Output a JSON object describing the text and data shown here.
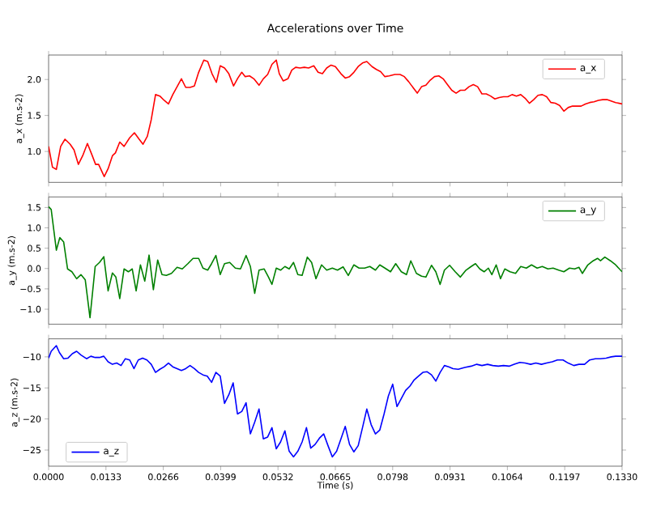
{
  "chart_data": [
    {
      "type": "line",
      "title": "Accelerations over Time",
      "ylabel": "a_x (m.s-2)",
      "legend": "top right",
      "tick_labels": "y",
      "xlim": [
        0,
        0.133
      ],
      "xticks": [
        {
          "value": 0,
          "label": null
        },
        {
          "value": 0.0133,
          "label": null
        },
        {
          "value": 0.0266,
          "label": null
        },
        {
          "value": 0.0399,
          "label": null
        },
        {
          "value": 0.0532,
          "label": null
        },
        {
          "value": 0.0665,
          "label": null
        },
        {
          "value": 0.0798,
          "label": null
        },
        {
          "value": 0.0931,
          "label": null
        },
        {
          "value": 0.1064,
          "label": null
        },
        {
          "value": 0.1197,
          "label": null
        },
        {
          "value": 0.133,
          "label": null
        }
      ],
      "ylim": [
        0.57,
        2.34
      ],
      "yticks": [
        {
          "value": 1,
          "label": "1.0"
        },
        {
          "value": 1.5,
          "label": "1.5"
        },
        {
          "value": 2,
          "label": "2.0"
        }
      ],
      "x": [
        0,
        0.0009,
        0.0018,
        0.0028,
        0.0038,
        0.005,
        0.0059,
        0.0069,
        0.0079,
        0.009,
        0.01,
        0.0109,
        0.0116,
        0.0129,
        0.0138,
        0.0148,
        0.0155,
        0.0165,
        0.0175,
        0.0188,
        0.0199,
        0.021,
        0.0219,
        0.0229,
        0.0238,
        0.0248,
        0.0258,
        0.0268,
        0.0278,
        0.0288,
        0.0298,
        0.0308,
        0.0318,
        0.0328,
        0.0338,
        0.0348,
        0.036,
        0.0369,
        0.0379,
        0.0389,
        0.0398,
        0.0408,
        0.0418,
        0.0429,
        0.0439,
        0.0448,
        0.0456,
        0.0466,
        0.0476,
        0.0488,
        0.0498,
        0.0508,
        0.0518,
        0.0528,
        0.0535,
        0.0544,
        0.0555,
        0.0564,
        0.0573,
        0.0583,
        0.0593,
        0.0603,
        0.0615,
        0.0625,
        0.0635,
        0.0645,
        0.0655,
        0.0665,
        0.0678,
        0.0688,
        0.0698,
        0.0708,
        0.0718,
        0.0728,
        0.0738,
        0.075,
        0.076,
        0.077,
        0.078,
        0.079,
        0.0803,
        0.0815,
        0.0825,
        0.0835,
        0.0845,
        0.0855,
        0.0865,
        0.0875,
        0.0885,
        0.0895,
        0.0905,
        0.0915,
        0.0925,
        0.0935,
        0.0945,
        0.0955,
        0.0965,
        0.0975,
        0.0985,
        0.0995,
        0.1005,
        0.1015,
        0.1025,
        0.1035,
        0.1045,
        0.1055,
        0.1065,
        0.1075,
        0.1085,
        0.1095,
        0.1105,
        0.1115,
        0.1125,
        0.1135,
        0.1145,
        0.1155,
        0.1165,
        0.1175,
        0.1185,
        0.1195,
        0.1205,
        0.1215,
        0.1225,
        0.1235,
        0.1245,
        0.1255,
        0.1265,
        0.1275,
        0.1285,
        0.1295,
        0.1305,
        0.1315,
        0.133
      ],
      "series": [
        {
          "name": "a_x",
          "color": "#ff0000",
          "values": [
            1.07,
            0.78,
            0.75,
            1.07,
            1.17,
            1.1,
            1.02,
            0.82,
            0.94,
            1.11,
            0.96,
            0.82,
            0.82,
            0.65,
            0.76,
            0.94,
            0.98,
            1.13,
            1.07,
            1.19,
            1.26,
            1.17,
            1.1,
            1.21,
            1.44,
            1.79,
            1.77,
            1.71,
            1.66,
            1.79,
            1.9,
            2.01,
            1.89,
            1.89,
            1.91,
            2.1,
            2.27,
            2.25,
            2.08,
            1.96,
            2.19,
            2.16,
            2.08,
            1.91,
            2.02,
            2.1,
            2.04,
            2.05,
            2.01,
            1.92,
            2.01,
            2.07,
            2.21,
            2.27,
            2.08,
            1.98,
            2.01,
            2.13,
            2.17,
            2.16,
            2.17,
            2.16,
            2.19,
            2.1,
            2.08,
            2.16,
            2.2,
            2.18,
            2.08,
            2.02,
            2.04,
            2.1,
            2.18,
            2.23,
            2.25,
            2.18,
            2.14,
            2.11,
            2.04,
            2.05,
            2.07,
            2.07,
            2.04,
            1.97,
            1.89,
            1.81,
            1.9,
            1.92,
            1.99,
            2.04,
            2.05,
            2.01,
            1.93,
            1.85,
            1.81,
            1.85,
            1.85,
            1.9,
            1.93,
            1.9,
            1.8,
            1.8,
            1.77,
            1.73,
            1.75,
            1.76,
            1.76,
            1.79,
            1.77,
            1.79,
            1.74,
            1.67,
            1.72,
            1.78,
            1.79,
            1.76,
            1.68,
            1.67,
            1.64,
            1.56,
            1.61,
            1.63,
            1.63,
            1.63,
            1.66,
            1.68,
            1.69,
            1.71,
            1.72,
            1.72,
            1.7,
            1.68,
            1.66
          ]
        }
      ]
    },
    {
      "type": "line",
      "ylabel": "a_y (m.s-2)",
      "legend": "top right",
      "tick_labels": "y",
      "xlim": [
        0,
        0.133
      ],
      "xticks": [
        {
          "value": 0,
          "label": null
        },
        {
          "value": 0.0133,
          "label": null
        },
        {
          "value": 0.0266,
          "label": null
        },
        {
          "value": 0.0399,
          "label": null
        },
        {
          "value": 0.0532,
          "label": null
        },
        {
          "value": 0.0665,
          "label": null
        },
        {
          "value": 0.0798,
          "label": null
        },
        {
          "value": 0.0931,
          "label": null
        },
        {
          "value": 0.1064,
          "label": null
        },
        {
          "value": 0.1197,
          "label": null
        },
        {
          "value": 0.133,
          "label": null
        }
      ],
      "ylim": [
        -1.37,
        1.76
      ],
      "yticks": [
        {
          "value": -1,
          "label": "−1.0"
        },
        {
          "value": -0.5,
          "label": "−0.5"
        },
        {
          "value": 0,
          "label": "0.0"
        },
        {
          "value": 0.5,
          "label": "0.5"
        },
        {
          "value": 1,
          "label": "1.0"
        },
        {
          "value": 1.5,
          "label": "1.5"
        }
      ],
      "x": [
        0,
        0.0006,
        0.0018,
        0.0026,
        0.0035,
        0.0044,
        0.0054,
        0.0065,
        0.0075,
        0.0085,
        0.0096,
        0.0108,
        0.0118,
        0.0128,
        0.0138,
        0.0148,
        0.0156,
        0.0165,
        0.0175,
        0.0185,
        0.0194,
        0.0203,
        0.0213,
        0.0223,
        0.0233,
        0.0243,
        0.0253,
        0.0263,
        0.0273,
        0.0285,
        0.0298,
        0.031,
        0.0323,
        0.0335,
        0.0348,
        0.0358,
        0.0369,
        0.0378,
        0.0388,
        0.0398,
        0.0408,
        0.042,
        0.0433,
        0.0445,
        0.0458,
        0.0468,
        0.0478,
        0.0488,
        0.05,
        0.051,
        0.0518,
        0.0528,
        0.0538,
        0.0548,
        0.0558,
        0.0568,
        0.0578,
        0.0588,
        0.06,
        0.061,
        0.062,
        0.0633,
        0.0645,
        0.0658,
        0.067,
        0.0683,
        0.0695,
        0.0708,
        0.072,
        0.0733,
        0.0745,
        0.0758,
        0.0768,
        0.078,
        0.0793,
        0.0805,
        0.0818,
        0.083,
        0.084,
        0.0853,
        0.0865,
        0.0875,
        0.0888,
        0.0898,
        0.0908,
        0.0918,
        0.093,
        0.0943,
        0.0955,
        0.0968,
        0.098,
        0.099,
        0.1,
        0.101,
        0.102,
        0.1028,
        0.1038,
        0.1048,
        0.1058,
        0.107,
        0.1083,
        0.1095,
        0.1108,
        0.112,
        0.1133,
        0.1145,
        0.1158,
        0.117,
        0.1183,
        0.1195,
        0.1208,
        0.122,
        0.123,
        0.1238,
        0.125,
        0.1263,
        0.1273,
        0.128,
        0.129,
        0.1303,
        0.1315,
        0.133
      ],
      "series": [
        {
          "name": "a_y",
          "color": "#008000",
          "values": [
            1.52,
            1.45,
            0.45,
            0.76,
            0.65,
            -0.01,
            -0.08,
            -0.25,
            -0.15,
            -0.28,
            -1.21,
            0.05,
            0.15,
            0.29,
            -0.55,
            -0.11,
            -0.21,
            -0.74,
            -0.01,
            -0.08,
            -0.01,
            -0.55,
            0.09,
            -0.31,
            0.33,
            -0.52,
            0.21,
            -0.15,
            -0.17,
            -0.12,
            0.03,
            -0.01,
            0.12,
            0.25,
            0.25,
            0.01,
            -0.04,
            0.12,
            0.32,
            -0.15,
            0.12,
            0.15,
            0.01,
            -0.01,
            0.32,
            0.05,
            -0.61,
            -0.04,
            -0.01,
            -0.21,
            -0.39,
            0.01,
            -0.04,
            0.05,
            -0.01,
            0.15,
            -0.15,
            -0.17,
            0.28,
            0.15,
            -0.25,
            0.09,
            -0.04,
            0.01,
            -0.04,
            0.04,
            -0.17,
            0.09,
            0.01,
            0.01,
            0.05,
            -0.04,
            0.09,
            0.01,
            -0.08,
            0.12,
            -0.08,
            -0.15,
            0.19,
            -0.12,
            -0.19,
            -0.21,
            0.08,
            -0.08,
            -0.39,
            -0.04,
            0.08,
            -0.08,
            -0.21,
            -0.04,
            0.05,
            0.12,
            -0.01,
            -0.08,
            0.01,
            -0.15,
            0.09,
            -0.25,
            -0.01,
            -0.08,
            -0.12,
            0.05,
            0.01,
            0.09,
            0.01,
            0.05,
            -0.01,
            0.01,
            -0.04,
            -0.08,
            0.01,
            -0.01,
            0.03,
            -0.12,
            0.08,
            0.19,
            0.25,
            0.19,
            0.28,
            0.19,
            0.09,
            -0.08
          ]
        }
      ]
    },
    {
      "type": "line",
      "xlabel": "Time (s)",
      "ylabel": "a_z (m.s-2)",
      "legend": "bottom left",
      "xlim": [
        0,
        0.133
      ],
      "xticks": [
        {
          "value": 0,
          "label": "0.0000"
        },
        {
          "value": 0.0133,
          "label": "0.0133"
        },
        {
          "value": 0.0266,
          "label": "0.0266"
        },
        {
          "value": 0.0399,
          "label": "0.0399"
        },
        {
          "value": 0.0532,
          "label": "0.0532"
        },
        {
          "value": 0.0665,
          "label": "0.0665"
        },
        {
          "value": 0.0798,
          "label": "0.0798"
        },
        {
          "value": 0.0931,
          "label": "0.0931"
        },
        {
          "value": 0.1064,
          "label": "0.1064"
        },
        {
          "value": 0.1197,
          "label": "0.1197"
        },
        {
          "value": 0.133,
          "label": "0.1330"
        }
      ],
      "ylim": [
        -27.6,
        -7.1
      ],
      "yticks": [
        {
          "value": -25,
          "label": "−25"
        },
        {
          "value": -20,
          "label": "−20"
        },
        {
          "value": -15,
          "label": "−15"
        },
        {
          "value": -10,
          "label": "−10"
        }
      ],
      "x": [
        0,
        0.0006,
        0.0018,
        0.0025,
        0.0035,
        0.0045,
        0.0055,
        0.0065,
        0.0075,
        0.0088,
        0.0098,
        0.0108,
        0.0118,
        0.0128,
        0.0138,
        0.0148,
        0.0158,
        0.0168,
        0.0178,
        0.0188,
        0.0198,
        0.0208,
        0.0218,
        0.0228,
        0.0238,
        0.0248,
        0.0258,
        0.0268,
        0.0278,
        0.0288,
        0.0298,
        0.0308,
        0.0318,
        0.0328,
        0.0338,
        0.0348,
        0.0358,
        0.0368,
        0.0378,
        0.0388,
        0.0398,
        0.0408,
        0.0418,
        0.0428,
        0.0438,
        0.0448,
        0.0458,
        0.0468,
        0.0478,
        0.0488,
        0.0498,
        0.0508,
        0.0518,
        0.0528,
        0.0538,
        0.0548,
        0.0558,
        0.0568,
        0.0578,
        0.0588,
        0.0598,
        0.0608,
        0.0618,
        0.0628,
        0.0638,
        0.0648,
        0.0658,
        0.0668,
        0.0678,
        0.0688,
        0.0698,
        0.0708,
        0.0718,
        0.0728,
        0.0738,
        0.0748,
        0.0758,
        0.0768,
        0.0778,
        0.0788,
        0.0798,
        0.0808,
        0.0818,
        0.0828,
        0.0838,
        0.0848,
        0.0858,
        0.0868,
        0.0878,
        0.0888,
        0.0898,
        0.0908,
        0.0918,
        0.0928,
        0.0938,
        0.095,
        0.0965,
        0.098,
        0.0993,
        0.1005,
        0.1018,
        0.103,
        0.1043,
        0.1055,
        0.1068,
        0.108,
        0.1093,
        0.1105,
        0.1118,
        0.113,
        0.1143,
        0.1155,
        0.1168,
        0.118,
        0.1193,
        0.1205,
        0.1218,
        0.123,
        0.1243,
        0.1255,
        0.1268,
        0.128,
        0.1293,
        0.1305,
        0.1315,
        0.133
      ],
      "series": [
        {
          "name": "a_z",
          "color": "#0000ff",
          "values": [
            -10.2,
            -9.1,
            -8.2,
            -9.3,
            -10.3,
            -10.2,
            -9.5,
            -9.1,
            -9.7,
            -10.3,
            -9.9,
            -10.1,
            -10.1,
            -9.9,
            -10.8,
            -11.2,
            -11.0,
            -11.4,
            -10.3,
            -10.5,
            -11.9,
            -10.5,
            -10.2,
            -10.5,
            -11.2,
            -12.5,
            -12.0,
            -11.6,
            -11.0,
            -11.6,
            -11.9,
            -12.2,
            -11.9,
            -11.4,
            -11.9,
            -12.5,
            -12.9,
            -13.1,
            -14.1,
            -12.5,
            -13.1,
            -17.5,
            -16.1,
            -14.2,
            -19.2,
            -18.8,
            -17.4,
            -22.4,
            -20.5,
            -18.4,
            -23.2,
            -22.9,
            -21.4,
            -24.8,
            -23.7,
            -21.9,
            -25.2,
            -26.1,
            -25.2,
            -23.7,
            -21.4,
            -24.7,
            -24.1,
            -23.1,
            -22.4,
            -24.3,
            -26.1,
            -25.2,
            -23.2,
            -21.2,
            -24.1,
            -25.3,
            -24.3,
            -21.4,
            -18.4,
            -20.9,
            -22.4,
            -21.8,
            -19.2,
            -16.3,
            -14.4,
            -18.0,
            -16.7,
            -15.4,
            -14.7,
            -13.7,
            -13.1,
            -12.5,
            -12.4,
            -12.9,
            -13.9,
            -12.5,
            -11.4,
            -11.6,
            -11.9,
            -12.0,
            -11.7,
            -11.5,
            -11.2,
            -11.4,
            -11.2,
            -11.4,
            -11.5,
            -11.4,
            -11.5,
            -11.2,
            -10.9,
            -11.0,
            -11.2,
            -11.0,
            -11.2,
            -11.0,
            -10.8,
            -10.5,
            -10.5,
            -11.0,
            -11.4,
            -11.2,
            -11.2,
            -10.5,
            -10.3,
            -10.3,
            -10.2,
            -10.0,
            -9.9,
            -9.9
          ]
        }
      ]
    }
  ]
}
